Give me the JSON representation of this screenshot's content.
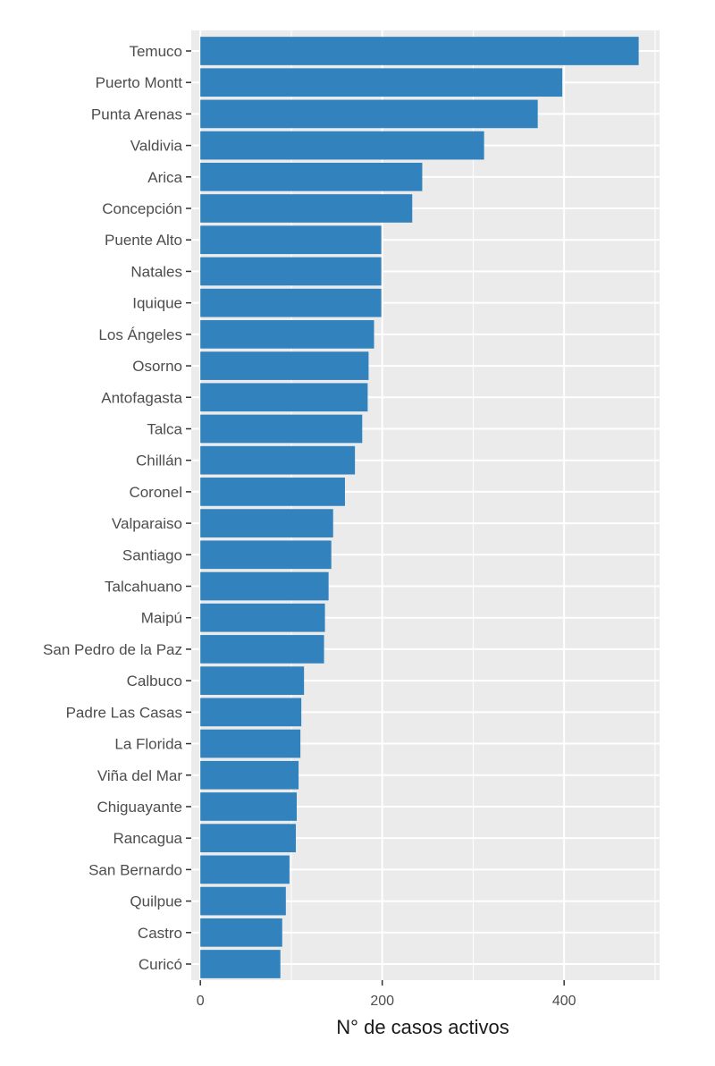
{
  "chart_data": {
    "type": "bar",
    "orientation": "horizontal",
    "categories": [
      "Temuco",
      "Puerto Montt",
      "Punta Arenas",
      "Valdivia",
      "Arica",
      "Concepción",
      "Puente Alto",
      "Natales",
      "Iquique",
      "Los Ángeles",
      "Osorno",
      "Antofagasta",
      "Talca",
      "Chillán",
      "Coronel",
      "Valparaiso",
      "Santiago",
      "Talcahuano",
      "Maipú",
      "San Pedro de la Paz",
      "Calbuco",
      "Padre Las Casas",
      "La Florida",
      "Viña del Mar",
      "Chiguayante",
      "Rancagua",
      "San Bernardo",
      "Quilpue",
      "Castro",
      "Curicó"
    ],
    "values": [
      482,
      398,
      371,
      312,
      244,
      233,
      199,
      199,
      199,
      191,
      185,
      184,
      178,
      170,
      159,
      146,
      144,
      141,
      137,
      136,
      114,
      111,
      110,
      108,
      106,
      105,
      98,
      94,
      90,
      88
    ],
    "xlabel": "N° de casos activos",
    "ylabel": "",
    "xlim": [
      -10,
      505
    ],
    "xticks": [
      0,
      200,
      400
    ],
    "grid": true,
    "bar_color": "#3182BD",
    "panel_background": "#EBEBEB"
  }
}
